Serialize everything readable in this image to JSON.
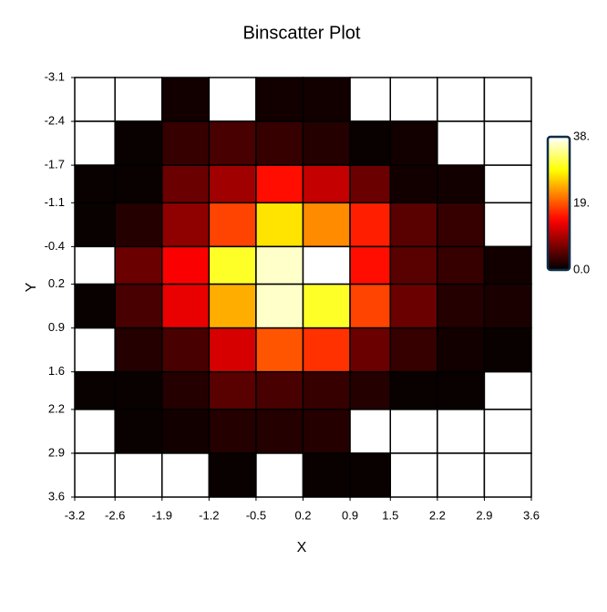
{
  "chart_data": {
    "type": "heatmap",
    "title": "Binscatter Plot",
    "x_label": "X",
    "y_label": "Y",
    "xlim": [
      -3.2,
      3.6
    ],
    "xticks": [
      -3.2,
      -2.6,
      -1.9,
      -1.2,
      -0.5,
      0.2,
      0.9,
      1.5,
      2.2,
      2.9,
      3.6
    ],
    "ylim": [
      -3.1,
      3.6
    ],
    "yticks": [
      -3.1,
      -2.4,
      -1.7,
      -1.1,
      -0.4,
      0.2,
      0.9,
      1.6,
      2.2,
      2.9,
      3.6
    ],
    "y_inverted": true,
    "colormap": "hot",
    "zlim": [
      0,
      38
    ],
    "zticks": [
      {
        "value": 38,
        "label": "38."
      },
      {
        "value": 19,
        "label": "19."
      },
      {
        "value": 0,
        "label": "0.0"
      }
    ],
    "values": [
      [
        null,
        null,
        1,
        null,
        1,
        1,
        null,
        null,
        null,
        null
      ],
      [
        null,
        0.5,
        3,
        4,
        3,
        2,
        0.5,
        1,
        null,
        null
      ],
      [
        0.5,
        0.5,
        6,
        9,
        15,
        11,
        6,
        1,
        1,
        null
      ],
      [
        0.5,
        2,
        8,
        18,
        27,
        22,
        16,
        5,
        3,
        null
      ],
      [
        null,
        6,
        14,
        30,
        36,
        38,
        15,
        5,
        3,
        1
      ],
      [
        0.5,
        4,
        13,
        24,
        36,
        30,
        18,
        6,
        2,
        1.5
      ],
      [
        null,
        2,
        4,
        12,
        19,
        17,
        6,
        3,
        1,
        0.5
      ],
      [
        0.5,
        0.5,
        2,
        5,
        4,
        3,
        2,
        0.5,
        0.5,
        null
      ],
      [
        null,
        0.5,
        1,
        2,
        2,
        2,
        null,
        null,
        null,
        null
      ],
      [
        null,
        null,
        null,
        0.5,
        null,
        0.5,
        0.5,
        null,
        null,
        null
      ]
    ]
  }
}
